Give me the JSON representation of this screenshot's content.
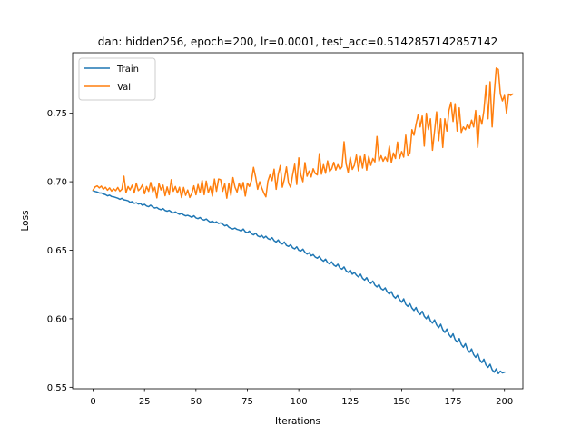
{
  "chart_data": {
    "type": "line",
    "title": "dan: hidden256, epoch=200, lr=0.0001, test_acc=0.5142857142857142",
    "xlabel": "Iterations",
    "ylabel": "Loss",
    "xlim": [
      -9.95,
      208.95
    ],
    "ylim": [
      0.5489,
      0.7942
    ],
    "x_ticks": [
      0,
      25,
      50,
      75,
      100,
      125,
      150,
      175,
      200
    ],
    "y_ticks": [
      0.55,
      0.6,
      0.65,
      0.7,
      0.75
    ],
    "y_tick_labels": [
      "0.55",
      "0.60",
      "0.65",
      "0.70",
      "0.75"
    ],
    "grid": false,
    "legend_position": "upper-left",
    "series": [
      {
        "name": "Train",
        "color": "#1f77b4",
        "x_start": 0,
        "x_step": 1,
        "values": [
          0.6935,
          0.6929,
          0.6925,
          0.6918,
          0.6918,
          0.6911,
          0.6906,
          0.6897,
          0.6902,
          0.6892,
          0.689,
          0.6885,
          0.688,
          0.6872,
          0.6879,
          0.6868,
          0.6865,
          0.6861,
          0.685,
          0.6855,
          0.6842,
          0.6847,
          0.6837,
          0.6841,
          0.6828,
          0.6835,
          0.6823,
          0.6818,
          0.6829,
          0.6815,
          0.6808,
          0.6812,
          0.6801,
          0.6796,
          0.6804,
          0.679,
          0.6785,
          0.6791,
          0.678,
          0.6772,
          0.678,
          0.677,
          0.6762,
          0.6768,
          0.6758,
          0.6751,
          0.6755,
          0.6748,
          0.674,
          0.6752,
          0.6736,
          0.6731,
          0.6739,
          0.6725,
          0.672,
          0.6728,
          0.6715,
          0.6705,
          0.6713,
          0.67,
          0.6708,
          0.6695,
          0.67,
          0.669,
          0.6678,
          0.6684,
          0.6668,
          0.666,
          0.6655,
          0.6662,
          0.6652,
          0.6648,
          0.664,
          0.6655,
          0.6635,
          0.6628,
          0.664,
          0.662,
          0.6612,
          0.6625,
          0.6605,
          0.6598,
          0.6608,
          0.659,
          0.6602,
          0.6585,
          0.6578,
          0.6592,
          0.657,
          0.656,
          0.6575,
          0.6552,
          0.6545,
          0.656,
          0.6535,
          0.6528,
          0.654,
          0.6518,
          0.651,
          0.6525,
          0.65,
          0.6495,
          0.6508,
          0.6485,
          0.6472,
          0.6482,
          0.646,
          0.6468,
          0.645,
          0.6442,
          0.6455,
          0.6432,
          0.642,
          0.6435,
          0.641,
          0.64,
          0.6415,
          0.6392,
          0.6382,
          0.6398,
          0.637,
          0.6362,
          0.6378,
          0.635,
          0.6338,
          0.6355,
          0.6325,
          0.6338,
          0.6318,
          0.6305,
          0.6325,
          0.6295,
          0.6282,
          0.63,
          0.627,
          0.6258,
          0.6275,
          0.6245,
          0.6232,
          0.625,
          0.622,
          0.621,
          0.6225,
          0.6195,
          0.618,
          0.6198,
          0.6165,
          0.615,
          0.617,
          0.614,
          0.612,
          0.6145,
          0.6105,
          0.609,
          0.611,
          0.6078,
          0.606,
          0.6082,
          0.6045,
          0.603,
          0.6055,
          0.6018,
          0.6,
          0.6025,
          0.5985,
          0.5968,
          0.5992,
          0.5955,
          0.5935,
          0.596,
          0.592,
          0.59,
          0.5925,
          0.5885,
          0.5865,
          0.589,
          0.5848,
          0.583,
          0.5855,
          0.5812,
          0.5792,
          0.5818,
          0.5775,
          0.5755,
          0.578,
          0.5738,
          0.5718,
          0.5745,
          0.57,
          0.568,
          0.5705,
          0.5662,
          0.5645,
          0.5668,
          0.5628,
          0.561,
          0.5635,
          0.56,
          0.5618,
          0.5605,
          0.561
        ]
      },
      {
        "name": "Val",
        "color": "#ff7f0e",
        "x_start": 0,
        "x_step": 1,
        "values": [
          0.694,
          0.6962,
          0.697,
          0.6955,
          0.6968,
          0.6945,
          0.696,
          0.6938,
          0.6955,
          0.6932,
          0.6948,
          0.6935,
          0.6958,
          0.693,
          0.6945,
          0.704,
          0.692,
          0.6965,
          0.694,
          0.6975,
          0.6918,
          0.699,
          0.6935,
          0.695,
          0.6978,
          0.6912,
          0.6965,
          0.693,
          0.6995,
          0.6925,
          0.696,
          0.6882,
          0.6988,
          0.694,
          0.6975,
          0.6898,
          0.6962,
          0.6905,
          0.7015,
          0.693,
          0.6965,
          0.6918,
          0.696,
          0.6885,
          0.6958,
          0.69,
          0.694,
          0.6885,
          0.6915,
          0.697,
          0.6905,
          0.698,
          0.692,
          0.701,
          0.6905,
          0.7005,
          0.692,
          0.6965,
          0.6895,
          0.702,
          0.693,
          0.702,
          0.7015,
          0.693,
          0.6985,
          0.688,
          0.699,
          0.69,
          0.703,
          0.696,
          0.6925,
          0.699,
          0.694,
          0.6995,
          0.6895,
          0.699,
          0.6965,
          0.701,
          0.7105,
          0.7035,
          0.6945,
          0.7,
          0.6955,
          0.6918,
          0.689,
          0.7005,
          0.705,
          0.7008,
          0.7092,
          0.6945,
          0.7055,
          0.7118,
          0.696,
          0.702,
          0.7108,
          0.699,
          0.696,
          0.705,
          0.7128,
          0.698,
          0.7175,
          0.705,
          0.7,
          0.714,
          0.704,
          0.7078,
          0.7035,
          0.7095,
          0.706,
          0.705,
          0.7205,
          0.7055,
          0.7125,
          0.7062,
          0.7152,
          0.7075,
          0.7095,
          0.7142,
          0.7085,
          0.7125,
          0.709,
          0.711,
          0.7292,
          0.713,
          0.7068,
          0.718,
          0.709,
          0.712,
          0.7195,
          0.708,
          0.7185,
          0.71,
          0.72,
          0.7085,
          0.7185,
          0.712,
          0.717,
          0.7145,
          0.733,
          0.715,
          0.719,
          0.715,
          0.718,
          0.715,
          0.726,
          0.714,
          0.721,
          0.717,
          0.729,
          0.717,
          0.722,
          0.718,
          0.734,
          0.719,
          0.721,
          0.738,
          0.734,
          0.742,
          0.749,
          0.74,
          0.748,
          0.726,
          0.75,
          0.738,
          0.746,
          0.723,
          0.737,
          0.751,
          0.73,
          0.746,
          0.725,
          0.746,
          0.737,
          0.752,
          0.758,
          0.744,
          0.757,
          0.737,
          0.754,
          0.736,
          0.74,
          0.738,
          0.742,
          0.739,
          0.745,
          0.74,
          0.752,
          0.725,
          0.748,
          0.742,
          0.752,
          0.77,
          0.746,
          0.773,
          0.74,
          0.764,
          0.783,
          0.782,
          0.764,
          0.759,
          0.763,
          0.75,
          0.764,
          0.763,
          0.764
        ]
      }
    ]
  }
}
